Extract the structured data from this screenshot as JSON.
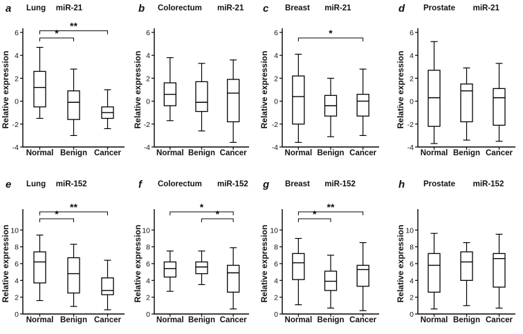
{
  "chart_data": [
    {
      "type": "box",
      "panel": "a",
      "tissue": "Lung",
      "gene": "miR-21",
      "ylabel": "Relative expression",
      "ylim": [
        -4,
        6
      ],
      "yticks": [
        -4,
        -2,
        0,
        2,
        4,
        6
      ],
      "categories": [
        "Normal",
        "Benign",
        "Cancer"
      ],
      "boxes": [
        {
          "min": -1.5,
          "q1": -0.5,
          "median": 1.2,
          "q3": 2.6,
          "max": 4.7
        },
        {
          "min": -3.0,
          "q1": -1.6,
          "median": -0.1,
          "q3": 0.9,
          "max": 2.8
        },
        {
          "min": -2.4,
          "q1": -1.5,
          "median": -1.0,
          "q3": -0.5,
          "max": 1.0
        }
      ],
      "significance": [
        {
          "from": 0,
          "to": 1,
          "label": "*"
        },
        {
          "from": 0,
          "to": 2,
          "label": "**"
        }
      ]
    },
    {
      "type": "box",
      "panel": "b",
      "tissue": "Colorectum",
      "gene": "miR-21",
      "ylabel": "Relative expression",
      "ylim": [
        -4,
        6
      ],
      "yticks": [
        -4,
        -2,
        0,
        2,
        4,
        6
      ],
      "categories": [
        "Normal",
        "Benign",
        "Cancer"
      ],
      "boxes": [
        {
          "min": -1.7,
          "q1": -0.4,
          "median": 0.6,
          "q3": 1.6,
          "max": 3.8
        },
        {
          "min": -2.6,
          "q1": -0.9,
          "median": -0.1,
          "q3": 1.7,
          "max": 3.3
        },
        {
          "min": -3.6,
          "q1": -1.8,
          "median": 0.7,
          "q3": 1.9,
          "max": 3.6
        }
      ],
      "significance": []
    },
    {
      "type": "box",
      "panel": "c",
      "tissue": "Breast",
      "gene": "miR-21",
      "ylabel": "Relative expression",
      "ylim": [
        -4,
        6
      ],
      "yticks": [
        -4,
        -2,
        0,
        2,
        4,
        6
      ],
      "categories": [
        "Normal",
        "Benign",
        "Cancer"
      ],
      "boxes": [
        {
          "min": -3.6,
          "q1": -2.0,
          "median": 0.4,
          "q3": 2.2,
          "max": 4.1
        },
        {
          "min": -3.1,
          "q1": -1.3,
          "median": -0.4,
          "q3": 0.5,
          "max": 2.0
        },
        {
          "min": -3.0,
          "q1": -1.3,
          "median": 0.0,
          "q3": 0.6,
          "max": 2.8
        }
      ],
      "significance": [
        {
          "from": 0,
          "to": 2,
          "label": "*"
        }
      ]
    },
    {
      "type": "box",
      "panel": "d",
      "tissue": "Prostate",
      "gene": "miR-21",
      "ylabel": "Relative expression",
      "ylim": [
        -4,
        6
      ],
      "yticks": [
        -4,
        -2,
        0,
        2,
        4,
        6
      ],
      "categories": [
        "Normal",
        "Benign",
        "Cancer"
      ],
      "boxes": [
        {
          "min": -3.7,
          "q1": -2.2,
          "median": 0.3,
          "q3": 2.7,
          "max": 5.2
        },
        {
          "min": -3.4,
          "q1": -1.8,
          "median": 0.9,
          "q3": 1.5,
          "max": 2.9
        },
        {
          "min": -3.5,
          "q1": -2.1,
          "median": 0.3,
          "q3": 1.1,
          "max": 3.3
        }
      ],
      "significance": []
    },
    {
      "type": "box",
      "panel": "e",
      "tissue": "Lung",
      "gene": "miR-152",
      "ylabel": "Relative expression",
      "ylim": [
        0,
        12
      ],
      "yticks": [
        0,
        2,
        4,
        6,
        8,
        10
      ],
      "categories": [
        "Normal",
        "Benign",
        "Cancer"
      ],
      "boxes": [
        {
          "min": 1.6,
          "q1": 3.7,
          "median": 6.2,
          "q3": 7.4,
          "max": 9.4
        },
        {
          "min": 0.9,
          "q1": 2.5,
          "median": 4.8,
          "q3": 6.7,
          "max": 8.3
        },
        {
          "min": 0.5,
          "q1": 2.3,
          "median": 2.8,
          "q3": 4.3,
          "max": 6.4
        }
      ],
      "significance": [
        {
          "from": 0,
          "to": 1,
          "label": "*"
        },
        {
          "from": 0,
          "to": 2,
          "label": "**"
        }
      ]
    },
    {
      "type": "box",
      "panel": "f",
      "tissue": "Colorectum",
      "gene": "miR-152",
      "ylabel": "Relative expression",
      "ylim": [
        0,
        12
      ],
      "yticks": [
        0,
        2,
        4,
        6,
        8,
        10
      ],
      "categories": [
        "Normal",
        "Benign",
        "Cancer"
      ],
      "boxes": [
        {
          "min": 2.7,
          "q1": 4.4,
          "median": 5.4,
          "q3": 6.2,
          "max": 7.5
        },
        {
          "min": 3.5,
          "q1": 4.8,
          "median": 5.6,
          "q3": 6.2,
          "max": 7.5
        },
        {
          "min": 0.6,
          "q1": 2.6,
          "median": 4.9,
          "q3": 5.8,
          "max": 7.9
        }
      ],
      "significance": [
        {
          "from": 0,
          "to": 2,
          "label": "*"
        },
        {
          "from": 1,
          "to": 2,
          "label": "*"
        }
      ]
    },
    {
      "type": "box",
      "panel": "g",
      "tissue": "Breast",
      "gene": "miR-152",
      "ylabel": "Relative expression",
      "ylim": [
        0,
        12
      ],
      "yticks": [
        0,
        2,
        4,
        6,
        8,
        10
      ],
      "categories": [
        "Normal",
        "Benign",
        "Cancer"
      ],
      "boxes": [
        {
          "min": 1.1,
          "q1": 4.1,
          "median": 6.1,
          "q3": 7.2,
          "max": 9.0
        },
        {
          "min": 0.7,
          "q1": 2.8,
          "median": 3.9,
          "q3": 5.1,
          "max": 7.0
        },
        {
          "min": 0.4,
          "q1": 3.3,
          "median": 5.3,
          "q3": 5.8,
          "max": 8.5
        }
      ],
      "significance": [
        {
          "from": 0,
          "to": 1,
          "label": "*"
        },
        {
          "from": 0,
          "to": 2,
          "label": "**"
        }
      ]
    },
    {
      "type": "box",
      "panel": "h",
      "tissue": "Prostate",
      "gene": "miR-152",
      "ylabel": "Relative expression",
      "ylim": [
        0,
        12
      ],
      "yticks": [
        0,
        2,
        4,
        6,
        8,
        10
      ],
      "categories": [
        "Normal",
        "Benign",
        "Cancer"
      ],
      "boxes": [
        {
          "min": 0.6,
          "q1": 2.6,
          "median": 5.8,
          "q3": 7.2,
          "max": 9.6
        },
        {
          "min": 1.0,
          "q1": 4.0,
          "median": 6.2,
          "q3": 7.4,
          "max": 8.5
        },
        {
          "min": 0.7,
          "q1": 3.2,
          "median": 6.6,
          "q3": 7.2,
          "max": 9.5
        }
      ],
      "significance": []
    }
  ]
}
